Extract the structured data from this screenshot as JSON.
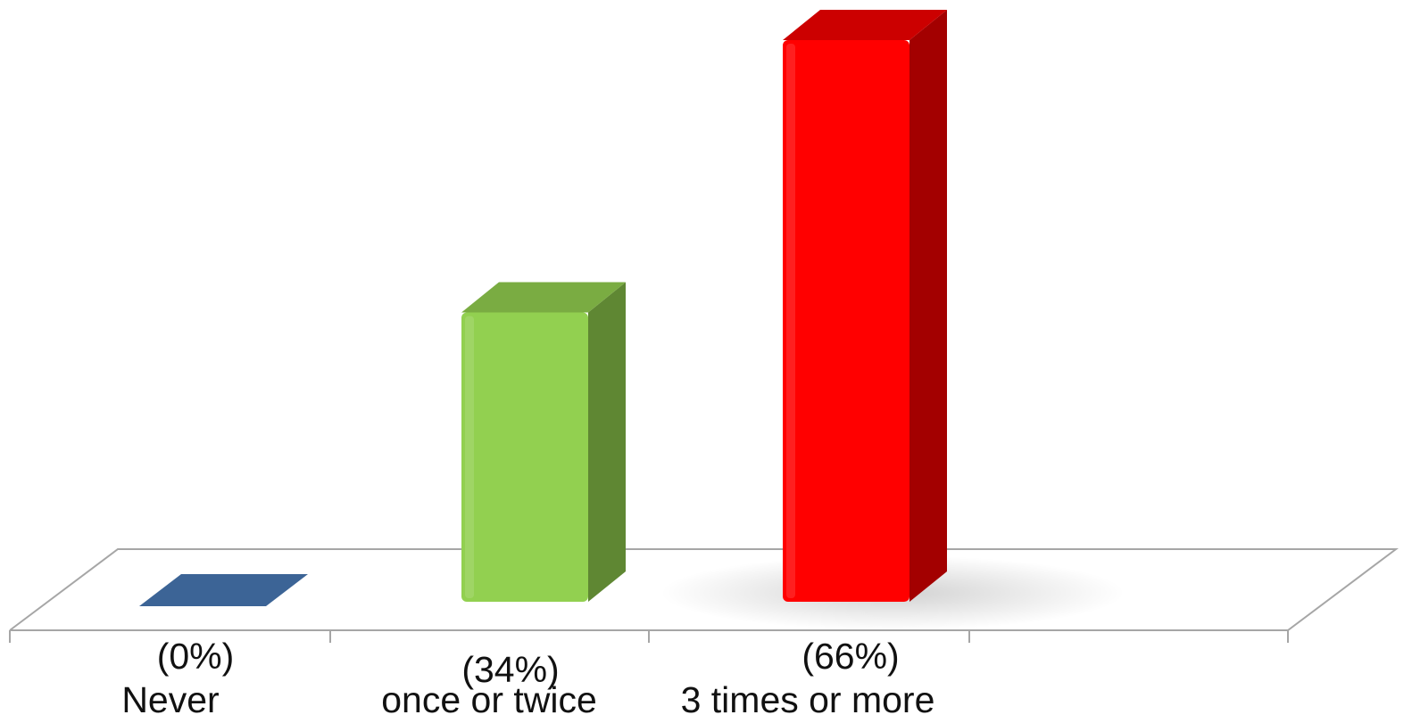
{
  "chart_data": {
    "type": "bar",
    "style": "3d-column",
    "categories": [
      "Never",
      "once or twice",
      "3 times or more"
    ],
    "values": [
      0,
      34,
      66
    ],
    "percent_labels": [
      "(0%)",
      "(34%)",
      "(66%)"
    ],
    "ylim": [
      0,
      100
    ],
    "grid": false,
    "legend": "none",
    "colors": [
      "#3c6496",
      "#92d050",
      "#ff0000"
    ],
    "shade_colors": [
      "#2c4a70",
      "#5f8733",
      "#a30000"
    ],
    "top_colors": [
      "#4f77a8",
      "#7aac42",
      "#cc0000"
    ],
    "floor_line_color": "#a6a6a6"
  }
}
